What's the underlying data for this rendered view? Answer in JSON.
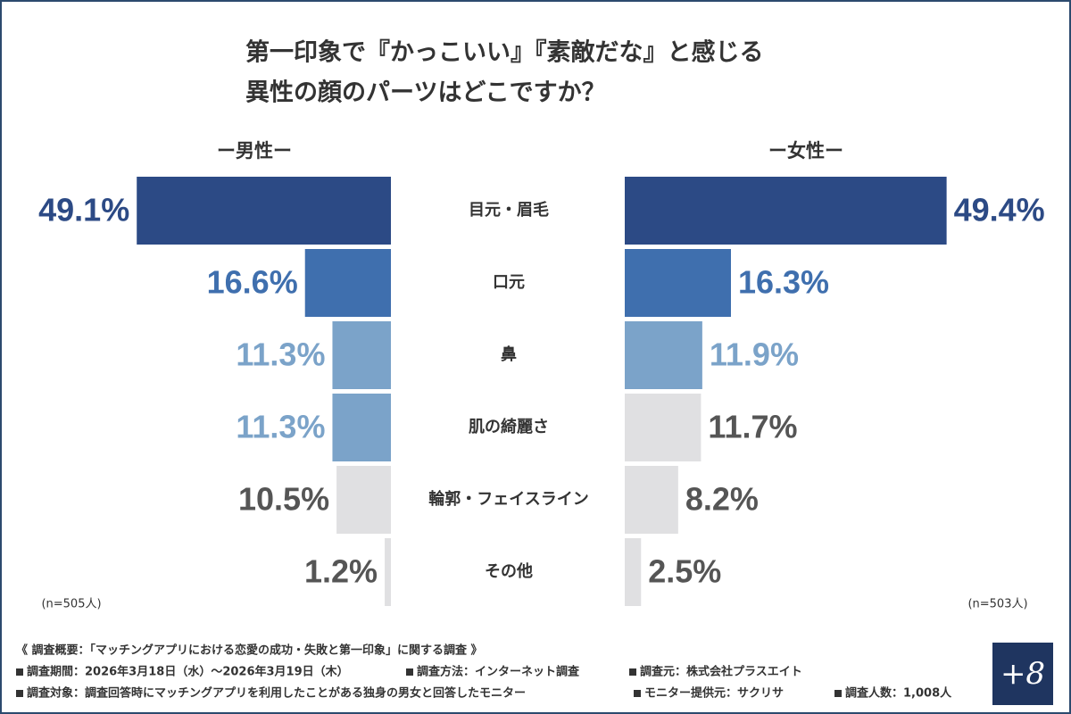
{
  "chart_data": {
    "type": "butterfly",
    "title": [
      "第一印象で『かっこいい』『素敵だな』と感じる",
      "異性の顔のパーツはどこですか？"
    ],
    "categories": [
      "目元・眉毛",
      "口元",
      "鼻",
      "肌の綺麗さ",
      "輪郭・フェイスライン",
      "その他"
    ],
    "xlim": [
      0,
      50
    ],
    "series": [
      {
        "name": "ー男性ー",
        "note": "(n=505人)",
        "values": [
          49.1,
          16.6,
          11.3,
          11.3,
          10.5,
          1.2
        ],
        "value_labels": [
          "49.1%",
          "16.6%",
          "11.3%",
          "11.3%",
          "10.5%",
          "1.2%"
        ],
        "colors": [
          "#2c4a85",
          "#3f6fae",
          "#7ba3c9",
          "#7ba3c9",
          "#e0e0e2",
          "#e0e0e2"
        ],
        "label_colors": [
          "#2c4a85",
          "#3f6fae",
          "#7ba3c9",
          "#7ba3c9",
          "#555555",
          "#555555"
        ]
      },
      {
        "name": "ー女性ー",
        "note": "(n=503人)",
        "values": [
          49.4,
          16.3,
          11.9,
          11.7,
          8.2,
          2.5
        ],
        "value_labels": [
          "49.4%",
          "16.3%",
          "11.9%",
          "11.7%",
          "8.2%",
          "2.5%"
        ],
        "colors": [
          "#2c4a85",
          "#3f6fae",
          "#7ba3c9",
          "#e0e0e2",
          "#e0e0e2",
          "#e0e0e2"
        ],
        "label_colors": [
          "#2c4a85",
          "#3f6fae",
          "#7ba3c9",
          "#555555",
          "#555555",
          "#555555"
        ]
      }
    ]
  },
  "footer": {
    "heading": "《 調査概要：「マッチングアプリにおける恋愛の成功・失敗と第一印象」に関する調査 》",
    "items": [
      "調査期間：2026年3月18日（水）〜2026年3月19日（木）",
      "調査方法：インターネット調査",
      "調査元：株式会社プラスエイト",
      "調査対象：調査回答時にマッチングアプリを利用したことがある独身の男女と回答したモニター",
      "モニター提供元：サクリサ",
      "調査人数：1,008人"
    ],
    "logo": "+8"
  }
}
